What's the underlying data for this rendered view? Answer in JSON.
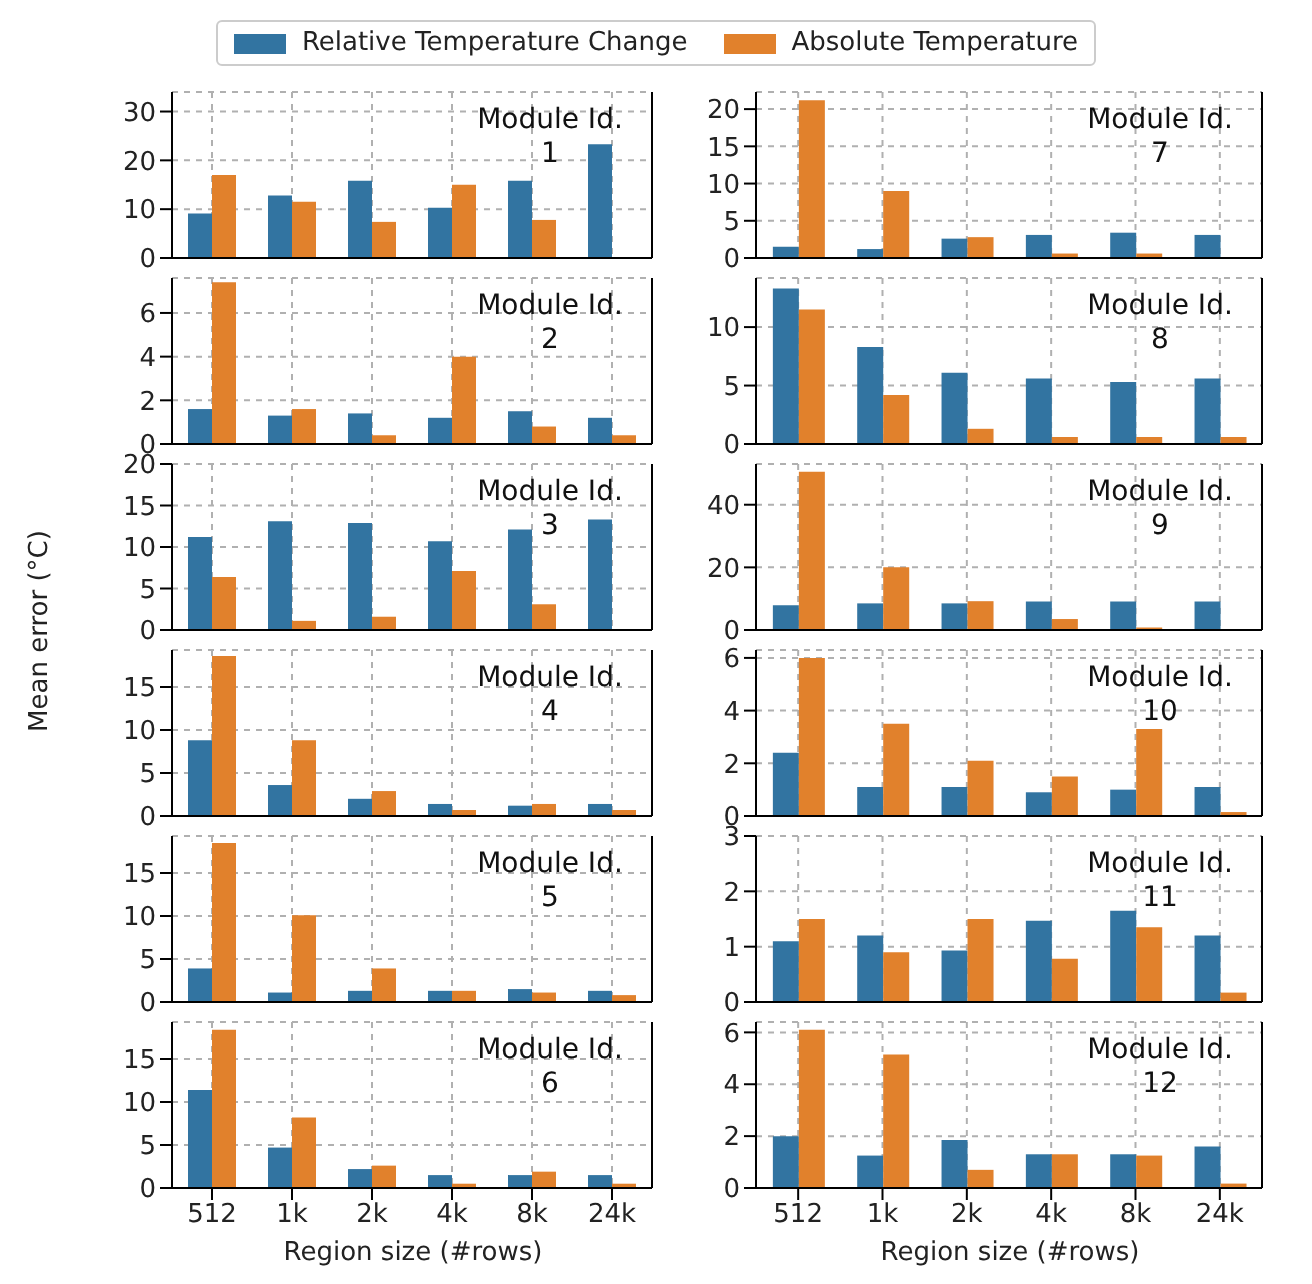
{
  "chart_data": [
    {
      "type": "bar",
      "categories": [
        null,
        null,
        null,
        null,
        null,
        null
      ],
      "legend": "top",
      "grid": true,
      "tick_labels": "y",
      "ylim": [
        0,
        34
      ],
      "yticks": [
        0,
        10,
        20,
        30
      ],
      "annotations": [
        "Module Id.\n1"
      ],
      "series": [
        {
          "name": "Relative Temperature Change",
          "color": "#3274a1",
          "values": [
            9.1,
            12.8,
            15.8,
            10.3,
            15.8,
            23.3
          ]
        },
        {
          "name": "Absolute Temperature",
          "color": "#e1812c",
          "values": [
            17,
            11.5,
            7.4,
            15,
            7.8,
            0
          ]
        }
      ]
    },
    {
      "type": "bar",
      "categories": [
        null,
        null,
        null,
        null,
        null,
        null
      ],
      "grid": true,
      "tick_labels": "y",
      "ylim": [
        0,
        7.6
      ],
      "yticks": [
        0,
        2,
        4,
        6
      ],
      "annotations": [
        "Module Id.\n2"
      ],
      "series": [
        {
          "color": "#3274a1",
          "values": [
            1.6,
            1.3,
            1.4,
            1.2,
            1.5,
            1.2
          ]
        },
        {
          "color": "#e1812c",
          "values": [
            7.4,
            1.6,
            0.4,
            4.0,
            0.8,
            0.4
          ]
        }
      ]
    },
    {
      "type": "bar",
      "categories": [
        null,
        null,
        null,
        null,
        null,
        null
      ],
      "ylabel": "Mean error (°C)",
      "grid": true,
      "tick_labels": "y",
      "ylim": [
        0,
        20
      ],
      "yticks": [
        0,
        5,
        10,
        15,
        20
      ],
      "annotations": [
        "Module Id.\n3"
      ],
      "series": [
        {
          "color": "#3274a1",
          "values": [
            11.2,
            13.1,
            12.9,
            10.7,
            12.1,
            13.3
          ]
        },
        {
          "color": "#e1812c",
          "values": [
            6.4,
            1.1,
            1.6,
            7.1,
            3.1,
            0
          ]
        }
      ]
    },
    {
      "type": "bar",
      "categories": [
        null,
        null,
        null,
        null,
        null,
        null
      ],
      "grid": true,
      "tick_labels": "y",
      "ylim": [
        0,
        19.3
      ],
      "yticks": [
        0,
        5,
        10,
        15
      ],
      "annotations": [
        "Module Id.\n4"
      ],
      "series": [
        {
          "color": "#3274a1",
          "values": [
            8.8,
            3.6,
            2.0,
            1.4,
            1.2,
            1.4
          ]
        },
        {
          "color": "#e1812c",
          "values": [
            18.6,
            8.8,
            2.9,
            0.7,
            1.4,
            0.7
          ]
        }
      ]
    },
    {
      "type": "bar",
      "categories": [
        null,
        null,
        null,
        null,
        null,
        null
      ],
      "grid": true,
      "tick_labels": "y",
      "ylim": [
        0,
        19.3
      ],
      "yticks": [
        0,
        5,
        10,
        15
      ],
      "annotations": [
        "Module Id.\n5"
      ],
      "series": [
        {
          "color": "#3274a1",
          "values": [
            3.9,
            1.1,
            1.3,
            1.3,
            1.5,
            1.3
          ]
        },
        {
          "color": "#e1812c",
          "values": [
            18.5,
            10.1,
            3.9,
            1.3,
            1.1,
            0.8
          ]
        }
      ]
    },
    {
      "type": "bar",
      "categories": [
        "512",
        "1k",
        "2k",
        "4k",
        "8k",
        "24k"
      ],
      "xlabel": "Region size (#rows)",
      "grid": true,
      "ylim": [
        0,
        19.3
      ],
      "yticks": [
        0,
        5,
        10,
        15
      ],
      "annotations": [
        "Module Id.\n6"
      ],
      "series": [
        {
          "color": "#3274a1",
          "values": [
            11.4,
            4.7,
            2.2,
            1.5,
            1.5,
            1.5
          ]
        },
        {
          "color": "#e1812c",
          "values": [
            18.4,
            8.2,
            2.6,
            0.5,
            1.9,
            0.5
          ]
        }
      ]
    },
    {
      "type": "bar",
      "categories": [
        null,
        null,
        null,
        null,
        null,
        null
      ],
      "grid": true,
      "tick_labels": "y",
      "ylim": [
        0,
        22.3
      ],
      "yticks": [
        0,
        5,
        10,
        15,
        20
      ],
      "annotations": [
        "Module Id.\n7"
      ],
      "series": [
        {
          "color": "#3274a1",
          "values": [
            1.5,
            1.2,
            2.6,
            3.1,
            3.4,
            3.1
          ]
        },
        {
          "color": "#e1812c",
          "values": [
            21.2,
            9.0,
            2.8,
            0.6,
            0.6,
            0
          ]
        }
      ]
    },
    {
      "type": "bar",
      "categories": [
        null,
        null,
        null,
        null,
        null,
        null
      ],
      "grid": true,
      "tick_labels": "y",
      "ylim": [
        0,
        14.2
      ],
      "yticks": [
        0,
        5,
        10
      ],
      "annotations": [
        "Module Id.\n8"
      ],
      "series": [
        {
          "color": "#3274a1",
          "values": [
            13.3,
            8.3,
            6.1,
            5.6,
            5.3,
            5.6
          ]
        },
        {
          "color": "#e1812c",
          "values": [
            11.5,
            4.2,
            1.3,
            0.6,
            0.6,
            0.6
          ]
        }
      ]
    },
    {
      "type": "bar",
      "categories": [
        null,
        null,
        null,
        null,
        null,
        null
      ],
      "grid": true,
      "tick_labels": "y",
      "ylim": [
        0,
        53
      ],
      "yticks": [
        0,
        20,
        40
      ],
      "annotations": [
        "Module Id.\n9"
      ],
      "series": [
        {
          "color": "#3274a1",
          "values": [
            7.9,
            8.5,
            8.5,
            9.1,
            9.1,
            9.1
          ]
        },
        {
          "color": "#e1812c",
          "values": [
            50.5,
            20.0,
            9.2,
            3.5,
            0.8,
            null
          ]
        }
      ]
    },
    {
      "type": "bar",
      "categories": [
        null,
        null,
        null,
        null,
        null,
        null
      ],
      "grid": true,
      "tick_labels": "y",
      "ylim": [
        0,
        6.3
      ],
      "yticks": [
        0,
        2,
        4,
        6
      ],
      "annotations": [
        "Module Id.\n10"
      ],
      "series": [
        {
          "color": "#3274a1",
          "values": [
            2.4,
            1.1,
            1.1,
            0.9,
            1.0,
            1.1
          ]
        },
        {
          "color": "#e1812c",
          "values": [
            6.0,
            3.5,
            2.1,
            1.5,
            3.3,
            0.15
          ]
        }
      ]
    },
    {
      "type": "bar",
      "categories": [
        null,
        null,
        null,
        null,
        null,
        null
      ],
      "grid": true,
      "tick_labels": "y",
      "ylim": [
        0,
        3
      ],
      "yticks": [
        0,
        1,
        2,
        3
      ],
      "annotations": [
        "Module Id.\n11"
      ],
      "series": [
        {
          "color": "#3274a1",
          "values": [
            1.1,
            1.2,
            0.93,
            1.47,
            1.65,
            1.2
          ]
        },
        {
          "color": "#e1812c",
          "values": [
            1.5,
            0.9,
            1.5,
            0.78,
            1.35,
            0.17
          ]
        }
      ]
    },
    {
      "type": "bar",
      "categories": [
        "512",
        "1k",
        "2k",
        "4k",
        "8k",
        "24k"
      ],
      "xlabel": "Region size (#rows)",
      "grid": true,
      "ylim": [
        0,
        6.4
      ],
      "yticks": [
        0,
        2,
        4,
        6
      ],
      "annotations": [
        "Module Id.\n12"
      ],
      "series": [
        {
          "color": "#3274a1",
          "values": [
            2.0,
            1.25,
            1.85,
            1.3,
            1.3,
            1.6
          ]
        },
        {
          "color": "#e1812c",
          "values": [
            6.1,
            5.15,
            0.7,
            1.3,
            1.25,
            0.17
          ]
        }
      ]
    }
  ]
}
